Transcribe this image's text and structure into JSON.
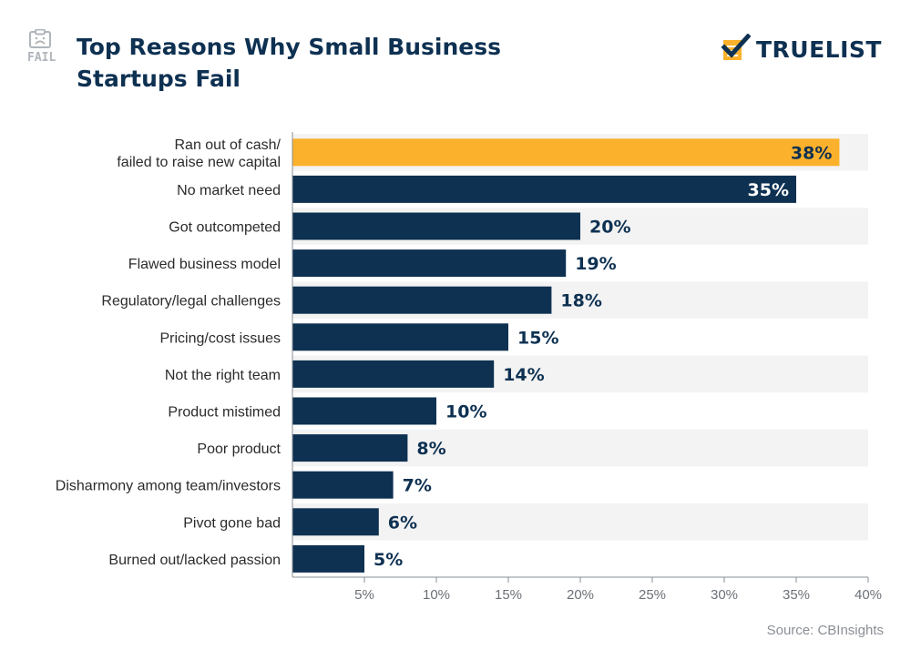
{
  "header": {
    "icon_text": "FAIL",
    "title_line1": "Top Reasons Why Small Business",
    "title_line2": "Startups Fail"
  },
  "brand": {
    "name": "TRUELIST",
    "icon": "checkmark-list-icon"
  },
  "source": "Source: CBInsights",
  "colors": {
    "highlight": "#fbb12b",
    "bar": "#0e3152",
    "band": "#f3f3f3",
    "axis": "#8a8f95",
    "text": "#2b2b2b"
  },
  "chart_data": {
    "type": "bar",
    "orientation": "horizontal",
    "categories": [
      [
        "Ran out of cash/",
        "failed to raise new capital"
      ],
      [
        "No market need"
      ],
      [
        "Got outcompeted"
      ],
      [
        "Flawed business model"
      ],
      [
        "Regulatory/legal challenges"
      ],
      [
        "Pricing/cost issues"
      ],
      [
        "Not the right team"
      ],
      [
        "Product mistimed"
      ],
      [
        "Poor product"
      ],
      [
        "Disharmony among team/investors"
      ],
      [
        "Pivot gone bad"
      ],
      [
        "Burned out/lacked passion"
      ]
    ],
    "values": [
      38,
      35,
      20,
      19,
      18,
      15,
      14,
      10,
      8,
      7,
      6,
      5
    ],
    "data_labels": [
      "38%",
      "35%",
      "20%",
      "19%",
      "18%",
      "15%",
      "14%",
      "10%",
      "8%",
      "7%",
      "6%",
      "5%"
    ],
    "xlim": [
      0,
      40
    ],
    "xticks": [
      5,
      10,
      15,
      20,
      25,
      30,
      35,
      40
    ],
    "xtick_labels": [
      "5%",
      "10%",
      "15%",
      "20%",
      "25%",
      "30%",
      "35%",
      "40%"
    ],
    "highlight_index": 0,
    "alternating_bands": true,
    "title": "Top Reasons Why Small Business Startups Fail",
    "xlabel": "",
    "ylabel": ""
  }
}
